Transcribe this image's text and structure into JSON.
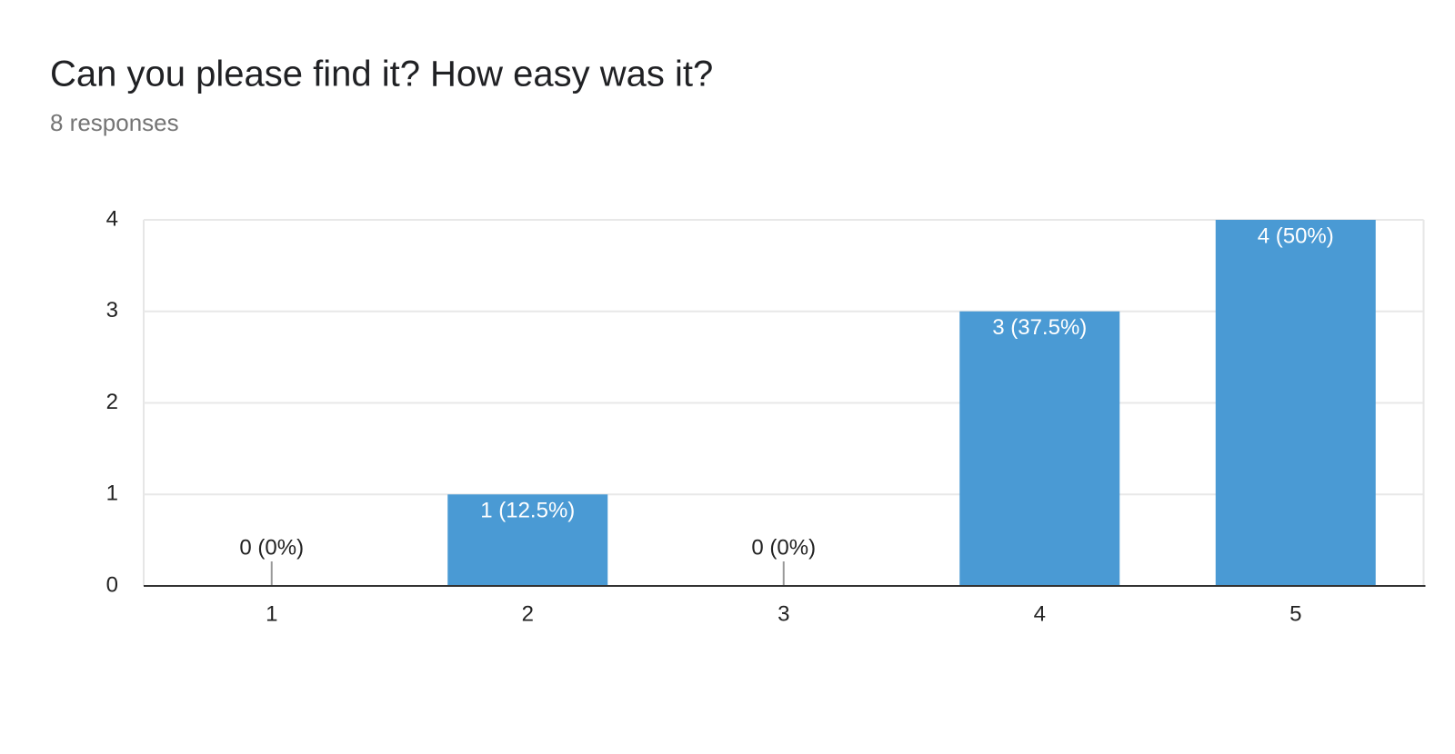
{
  "chart_data": {
    "type": "bar",
    "title": "Can you please find it? How easy was it?",
    "subtitle": "8 responses",
    "categories": [
      "1",
      "2",
      "3",
      "4",
      "5"
    ],
    "values": [
      0,
      1,
      0,
      3,
      4
    ],
    "value_labels": [
      "0 (0%)",
      "1 (12.5%)",
      "0 (0%)",
      "3 (37.5%)",
      "4 (50%)"
    ],
    "color": "#4a9ad4",
    "ylim": [
      0,
      4
    ],
    "yticks": [
      0,
      1,
      2,
      3,
      4
    ],
    "grid": true
  }
}
